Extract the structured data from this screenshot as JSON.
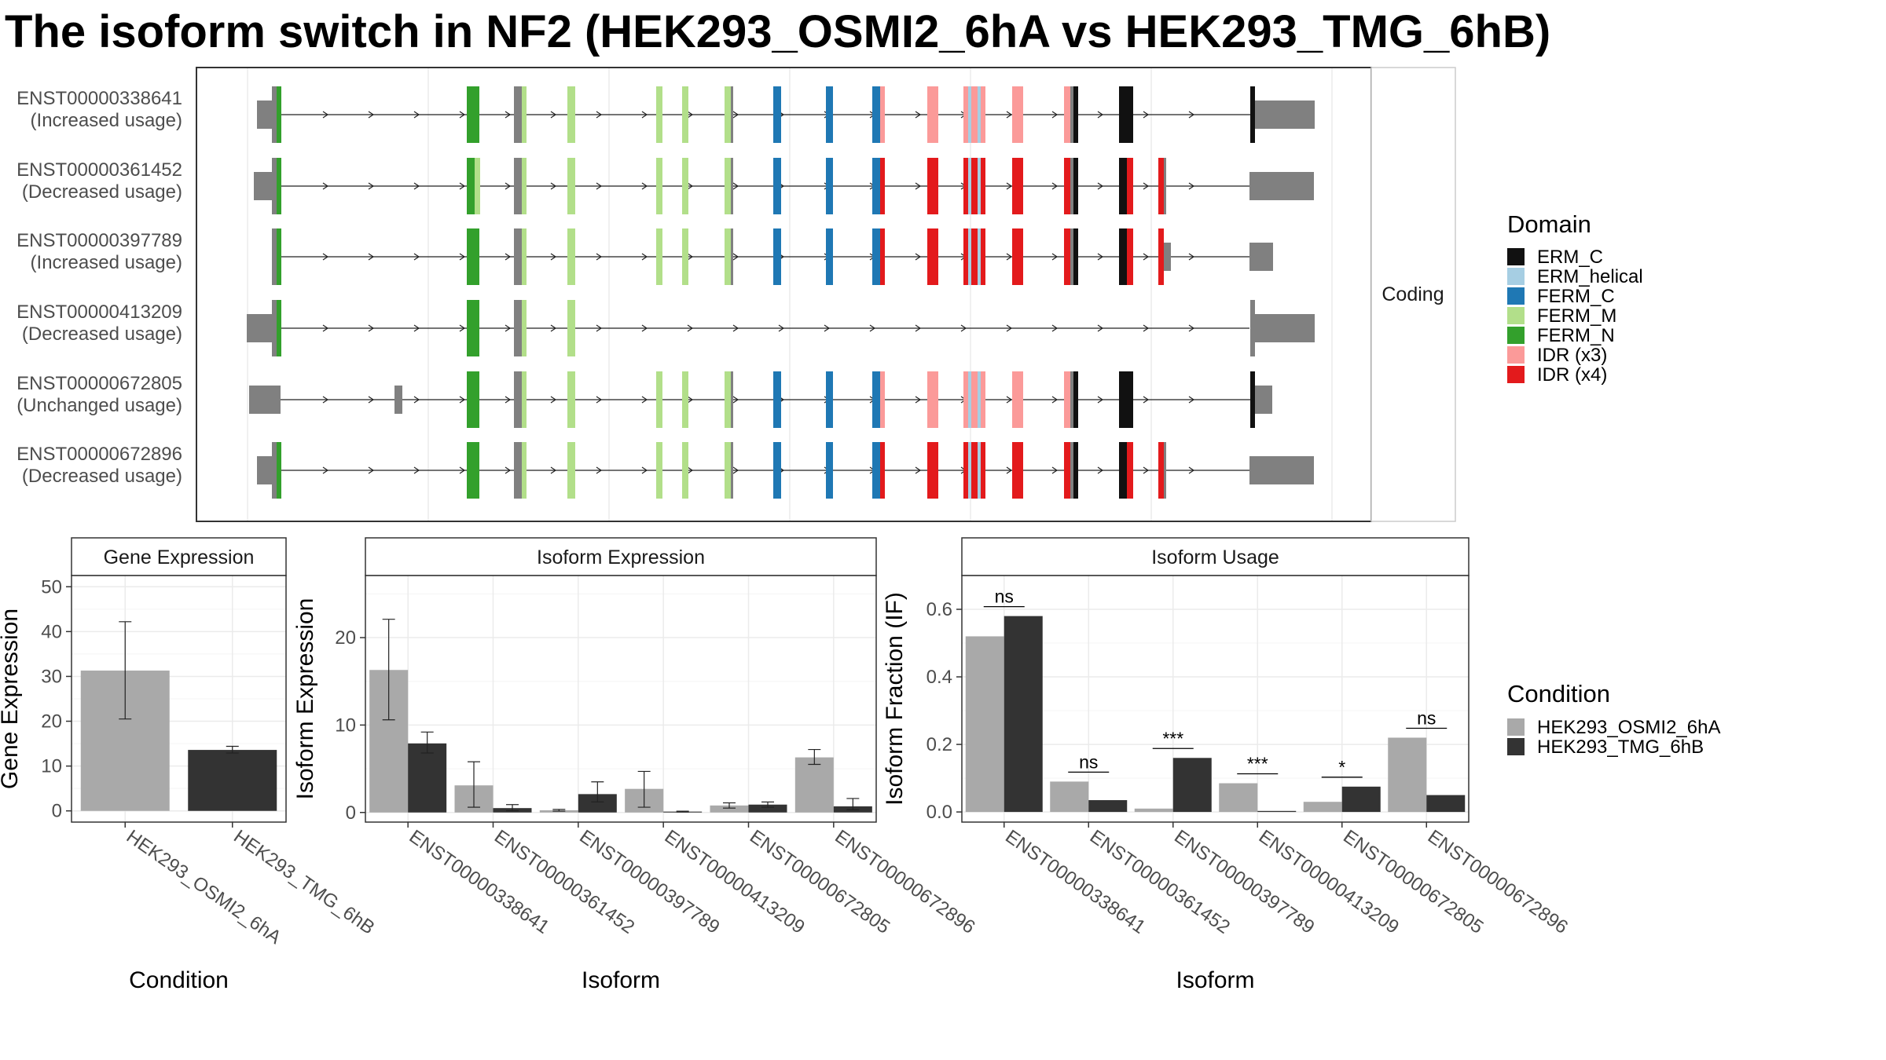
{
  "title": "The isoform switch in NF2 (HEK293_OSMI2_6hA vs HEK293_TMG_6hB)",
  "domain_legend": {
    "title": "Domain",
    "items": [
      {
        "label": "ERM_C",
        "color": "#111111"
      },
      {
        "label": "ERM_helical",
        "color": "#a6cee3"
      },
      {
        "label": "FERM_C",
        "color": "#1f78b4"
      },
      {
        "label": "FERM_M",
        "color": "#b2df8a"
      },
      {
        "label": "FERM_N",
        "color": "#33a02c"
      },
      {
        "label": "IDR (x3)",
        "color": "#fb9a99"
      },
      {
        "label": "IDR (x4)",
        "color": "#e31a1c"
      }
    ]
  },
  "condition_legend": {
    "title": "Condition",
    "items": [
      {
        "label": "HEK293_OSMI2_6hA",
        "color": "#a9a9a9"
      },
      {
        "label": "HEK293_TMG_6hB",
        "color": "#333333"
      }
    ]
  },
  "structure": {
    "strip_label": "Coding",
    "isoforms": [
      {
        "id": "ENST00000338641",
        "usage": "(Increased usage)"
      },
      {
        "id": "ENST00000361452",
        "usage": "(Decreased usage)"
      },
      {
        "id": "ENST00000397789",
        "usage": "(Increased usage)"
      },
      {
        "id": "ENST00000413209",
        "usage": "(Decreased usage)"
      },
      {
        "id": "ENST00000672805",
        "usage": "(Unchanged usage)"
      },
      {
        "id": "ENST00000672896",
        "usage": "(Decreased usage)"
      }
    ]
  },
  "chart_data": [
    {
      "type": "bar",
      "panel": "Gene Expression",
      "xlabel": "Condition",
      "ylabel": "Gene Expression",
      "categories": [
        "HEK293_OSMI2_6hA",
        "HEK293_TMG_6hB"
      ],
      "values": [
        31.3,
        13.6
      ],
      "error_low": [
        20.5,
        12.9
      ],
      "error_high": [
        42.2,
        14.4
      ],
      "ylim": [
        -2.5,
        52.5
      ],
      "yticks": [
        0,
        10,
        20,
        30,
        40,
        50
      ]
    },
    {
      "type": "bar",
      "panel": "Isoform Expression",
      "xlabel": "Isoform",
      "ylabel": "Isoform Expression",
      "categories": [
        "ENST00000338641",
        "ENST00000361452",
        "ENST00000397789",
        "ENST00000413209",
        "ENST00000672805",
        "ENST00000672896"
      ],
      "series": [
        {
          "name": "HEK293_OSMI2_6hA",
          "values": [
            16.3,
            3.1,
            0.25,
            2.7,
            0.8,
            6.3
          ],
          "error_low": [
            10.6,
            0.6,
            0.15,
            0.6,
            0.5,
            5.5
          ],
          "error_high": [
            22.1,
            5.8,
            0.35,
            4.7,
            1.1,
            7.2
          ]
        },
        {
          "name": "HEK293_TMG_6hB",
          "values": [
            7.9,
            0.5,
            2.1,
            0.1,
            0.9,
            0.7
          ],
          "error_low": [
            6.8,
            0.2,
            1.2,
            0.05,
            0.6,
            0.3
          ],
          "error_high": [
            9.2,
            0.9,
            3.5,
            0.15,
            1.2,
            1.6
          ]
        }
      ],
      "ylim": [
        -1.1,
        27.1
      ],
      "yticks": [
        0,
        10,
        20
      ]
    },
    {
      "type": "bar",
      "panel": "Isoform Usage",
      "xlabel": "Isoform",
      "ylabel": "Isoform Fraction (IF)",
      "categories": [
        "ENST00000338641",
        "ENST00000361452",
        "ENST00000397789",
        "ENST00000413209",
        "ENST00000672805",
        "ENST00000672896"
      ],
      "series": [
        {
          "name": "HEK293_OSMI2_6hA",
          "values": [
            0.52,
            0.09,
            0.01,
            0.085,
            0.03,
            0.22
          ]
        },
        {
          "name": "HEK293_TMG_6hB",
          "values": [
            0.58,
            0.035,
            0.16,
            0.003,
            0.075,
            0.05
          ]
        }
      ],
      "significance": [
        "ns",
        "ns",
        "***",
        "***",
        "*",
        "ns"
      ],
      "ylim": [
        -0.03,
        0.7
      ],
      "yticks": [
        "0.0",
        "0.2",
        "0.4",
        "0.6"
      ]
    }
  ]
}
